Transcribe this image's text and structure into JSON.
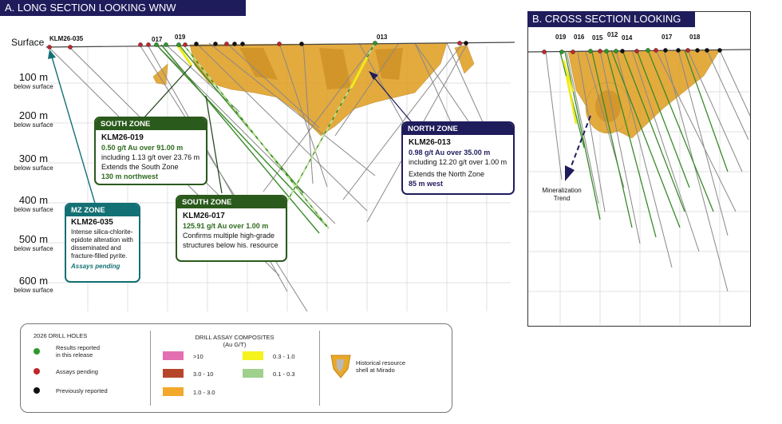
{
  "long_section": {
    "title": "A. LONG SECTION LOOKING WNW",
    "surface_label": "Surface",
    "depths": [
      {
        "value": "100 m",
        "sub": "below surface"
      },
      {
        "value": "200 m",
        "sub": "below surface"
      },
      {
        "value": "300 m",
        "sub": "below surface"
      },
      {
        "value": "400 m",
        "sub": "below surface"
      },
      {
        "value": "500 m",
        "sub": "below surface"
      },
      {
        "value": "600 m",
        "sub": "below surface"
      }
    ],
    "hole_labels": [
      "KLM26-035",
      "017",
      "019",
      "013"
    ],
    "south_zone_1": {
      "header": "SOUTH ZONE",
      "hole": "KLM26-019",
      "line1": "0.50 g/t Au over 91.00 m",
      "line2": "including 1.13 g/t over 23.76 m",
      "line3": "Extends the South Zone",
      "line4": "130 m northwest"
    },
    "south_zone_2": {
      "header": "SOUTH ZONE",
      "hole": "KLM26-017",
      "line1": "125.91 g/t Au over 1.00 m",
      "line2": "Confirms multiple high-grade",
      "line3": "structures below his. resource"
    },
    "north_zone": {
      "header": "NORTH ZONE",
      "hole": "KLM26-013",
      "line1": "0.98 g/t Au over 35.00 m",
      "line2": "including 12.20 g/t over 1.00 m",
      "line3": "Extends the North Zone",
      "line4": "85 m west"
    },
    "mz_zone": {
      "header": "MZ ZONE",
      "hole": "KLM26-035",
      "line1": "Intense silica-chlorite-",
      "line2": "epidote alteration with",
      "line3": "disseminated and",
      "line4": "fracture-filled pyrite.",
      "line5": "Assays pending"
    }
  },
  "cross_section": {
    "title": "B. CROSS SECTION LOOKING ENE",
    "hole_labels": [
      "019",
      "016",
      "015",
      "012",
      "014",
      "017",
      "018"
    ],
    "trend_line1": "Mineralization",
    "trend_line2": "Trend"
  },
  "legend": {
    "drill_holes_title": "2026 DRILL HOLES",
    "results_line1": "Results reported",
    "results_line2": "in this release",
    "pending": "Assays pending",
    "previous": "Previously reported",
    "assay_title_line1": "DRILL ASSAY COMPOSITES",
    "assay_title_line2": "(Au G/T)",
    "grades": [
      {
        "label": ">10",
        "color": "#e36fb1"
      },
      {
        "label": "3.0 - 10",
        "color": "#b5462a"
      },
      {
        "label": "1.0 - 3.0",
        "color": "#f2a92a"
      },
      {
        "label": "0.3 - 1.0",
        "color": "#f5f21c"
      },
      {
        "label": "0.1 - 0.3",
        "color": "#9fd08c"
      }
    ],
    "shell_line1": "Historical resource",
    "shell_line2": "shell at Mirado"
  },
  "colors": {
    "navy": "#1f1c5c",
    "dark_green": "#2a5a1c",
    "teal": "#137074",
    "dot_green": "#2b9a2a",
    "dot_red": "#c0262c",
    "dot_black": "#111111",
    "shell": "#e0a12a"
  }
}
